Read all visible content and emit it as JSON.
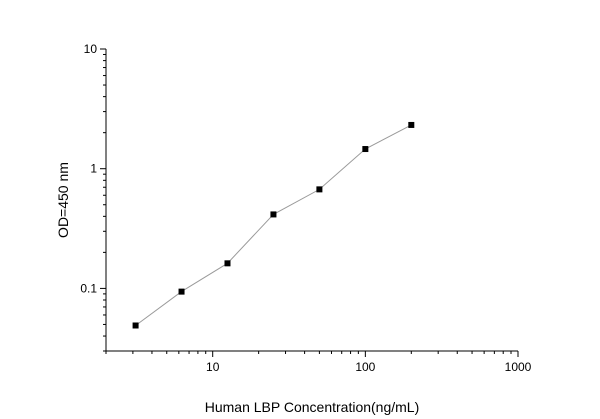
{
  "chart_data": {
    "type": "scatter",
    "xlabel": "Human LBP Concentration(ng/mL)",
    "ylabel": "OD=450 nm",
    "x_scale": "log",
    "y_scale": "log",
    "xlim": [
      2,
      1000
    ],
    "ylim": [
      0.03,
      10
    ],
    "x_ticks": [
      {
        "value": 10,
        "label": "10"
      },
      {
        "value": 100,
        "label": "100"
      },
      {
        "value": 1000,
        "label": "1000"
      }
    ],
    "y_ticks": [
      {
        "value": 0.1,
        "label": "0.1"
      },
      {
        "value": 1,
        "label": "1"
      },
      {
        "value": 10,
        "label": "10"
      }
    ],
    "grid": false,
    "line_connected": true,
    "marker": "square",
    "colors": {
      "marker": "#000000",
      "line": "#9a9a9a",
      "axis": "#000000"
    },
    "points": [
      {
        "x": 3.125,
        "y": 0.049
      },
      {
        "x": 6.25,
        "y": 0.094
      },
      {
        "x": 12.5,
        "y": 0.162
      },
      {
        "x": 25,
        "y": 0.415
      },
      {
        "x": 50,
        "y": 0.672
      },
      {
        "x": 100,
        "y": 1.46
      },
      {
        "x": 200,
        "y": 2.32
      }
    ]
  }
}
